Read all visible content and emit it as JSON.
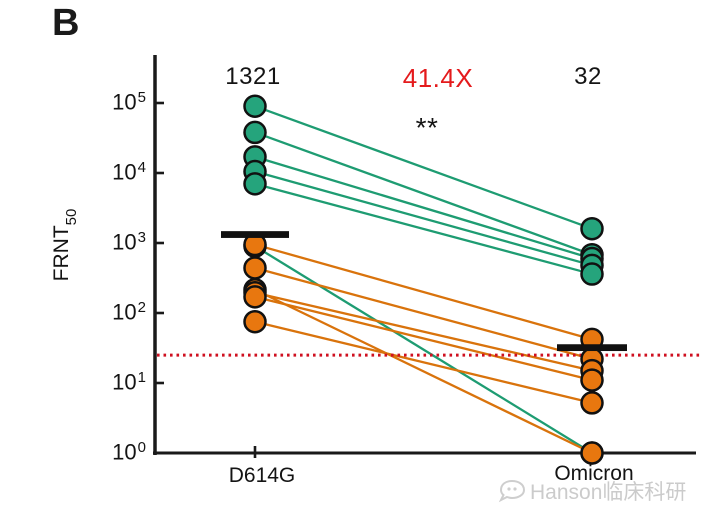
{
  "panel_label": "B",
  "watermark": {
    "text": "Hanson临床科研"
  },
  "chart_data": {
    "type": "paired-line-scatter",
    "title": "",
    "ylabel": "FRNT",
    "ylabel_sub": "50",
    "yscale": "log",
    "ylim": [
      1,
      100000
    ],
    "ytick_exponents": [
      5,
      4,
      3,
      2,
      1,
      0
    ],
    "categories": [
      "D614G",
      "Omicron"
    ],
    "labels": {
      "left_gmt": "1321",
      "fold_change": "41.4X",
      "right_gmt": "32",
      "significance": "**"
    },
    "medians": {
      "left": 1321,
      "right": 32
    },
    "threshold_line": {
      "value": 25,
      "style": "dotted",
      "color": "#cf1020"
    },
    "series": [
      {
        "name": "green-group",
        "point_color": "#25a47c",
        "line_color": "#1e9c72",
        "pairs": [
          [
            90000,
            1600
          ],
          [
            38000,
            680
          ],
          [
            17000,
            600
          ],
          [
            10500,
            480
          ],
          [
            7000,
            360
          ],
          [
            900,
            1
          ]
        ]
      },
      {
        "name": "orange-group",
        "point_color": "#e8770f",
        "line_color": "#d9730c",
        "pairs": [
          [
            950,
            42
          ],
          [
            440,
            22
          ],
          [
            215,
            1
          ],
          [
            195,
            15
          ],
          [
            170,
            11
          ],
          [
            75,
            5.2
          ]
        ]
      }
    ],
    "layout": {
      "axis_color": "#1a1a1a",
      "median_bar_color": "#111111",
      "grid": "off",
      "legend": "none"
    }
  }
}
